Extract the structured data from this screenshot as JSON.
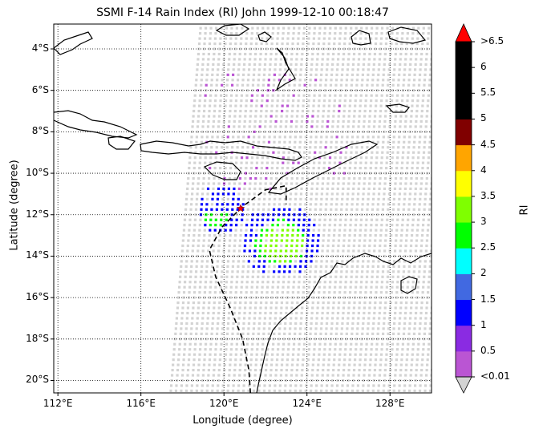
{
  "title": "SSMI F-14 Rain Index (RI) John 1999-12-10 00:18:47",
  "xlabel": "Longitude (degree)",
  "ylabel": "Latitude (degree)",
  "colorbar": {
    "label": "RI",
    "ticks": [
      "<0.01",
      "0.5",
      "1",
      "1.5",
      "2",
      "2.5",
      "3",
      "3.5",
      "4",
      "4.5",
      "5",
      "5.5",
      "6",
      ">6.5"
    ],
    "colors": [
      "#BA55D3",
      "#8A2BE2",
      "#0000FF",
      "#4169E1",
      "#00FFFF",
      "#00FF00",
      "#7FFF00",
      "#FFFF00",
      "#FFA500",
      "#800000",
      "#000000",
      "#000000",
      "#000000"
    ],
    "under_color": "#D3D3D3",
    "over_color": "#FF0000"
  },
  "chart_data": {
    "type": "heatmap",
    "title": "SSMI F-14 Rain Index (RI) John 1999-12-10 00:18:47",
    "xlabel": "Longitude (degree)",
    "ylabel": "Latitude (degree)",
    "xlim": [
      111.8,
      130.0
    ],
    "ylim": [
      -20.6,
      -2.8
    ],
    "xticks": [
      "112°E",
      "116°E",
      "120°E",
      "124°E",
      "128°E"
    ],
    "xtick_values": [
      112,
      116,
      120,
      124,
      128
    ],
    "yticks": [
      "4°S",
      "6°S",
      "8°S",
      "10°S",
      "12°S",
      "14°S",
      "16°S",
      "18°S",
      "20°S"
    ],
    "ytick_values": [
      -4,
      -6,
      -8,
      -10,
      -12,
      -14,
      -16,
      -18,
      -20
    ],
    "grid": true,
    "storm_center": {
      "lon": 120.8,
      "lat": -11.7,
      "marker": "star",
      "color": "#FF0000"
    },
    "storm_track": [
      [
        121.3,
        -21.0
      ],
      [
        121.2,
        -19.5
      ],
      [
        120.9,
        -18.0
      ],
      [
        120.3,
        -16.5
      ],
      [
        119.6,
        -15.0
      ],
      [
        119.3,
        -13.7
      ],
      [
        119.9,
        -12.6
      ],
      [
        120.9,
        -11.6
      ],
      [
        122.0,
        -10.8
      ],
      [
        123.0,
        -10.6
      ],
      [
        123.0,
        -11.5
      ]
    ],
    "rain_regions": [
      {
        "category": "3",
        "lon": [
          121.8,
          123.8
        ],
        "lat": [
          -14.3,
          -12.5
        ]
      },
      {
        "category": "2.5",
        "lon": [
          121.5,
          124.0
        ],
        "lat": [
          -14.5,
          -12.2
        ]
      },
      {
        "category": "1",
        "lon": [
          120.8,
          124.6
        ],
        "lat": [
          -15.0,
          -11.5
        ]
      },
      {
        "category": "2.5",
        "lon": [
          119.0,
          120.3
        ],
        "lat": [
          -12.6,
          -11.8
        ]
      },
      {
        "category": "1",
        "lon": [
          118.8,
          121.0
        ],
        "lat": [
          -13.0,
          -10.5
        ]
      }
    ]
  }
}
